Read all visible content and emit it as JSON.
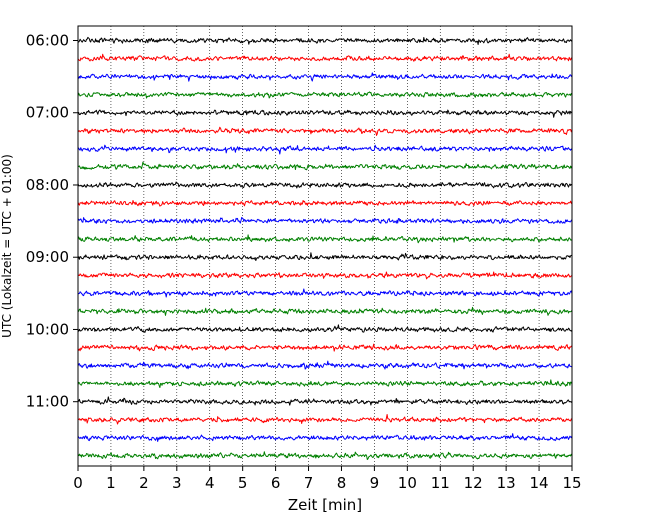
{
  "chart_data": {
    "type": "line",
    "title": "",
    "xlabel": "Zeit  [min]",
    "ylabel": "UTC (Lokalzeit = UTC + 01:00)",
    "xlim": [
      0,
      15
    ],
    "x_ticks": [
      0,
      1,
      2,
      3,
      4,
      5,
      6,
      7,
      8,
      9,
      10,
      11,
      12,
      13,
      14,
      15
    ],
    "x_tick_labels": [
      "0",
      "1",
      "2",
      "3",
      "4",
      "5",
      "6",
      "7",
      "8",
      "9",
      "10",
      "11",
      "12",
      "13",
      "14",
      "15"
    ],
    "y_tick_labels": [
      "06:00",
      "07:00",
      "08:00",
      "09:00",
      "10:00",
      "11:00"
    ],
    "y_tick_traces": [
      0,
      4,
      8,
      12,
      16,
      20
    ],
    "trace_interval_minutes": 15,
    "grid": "vertical dotted",
    "legend": "none",
    "trace_color_cycle": [
      "#000000",
      "#ff0000",
      "#0000ff",
      "#008000"
    ],
    "traces": [
      {
        "start": "06:00"
      },
      {
        "start": "06:15"
      },
      {
        "start": "06:30"
      },
      {
        "start": "06:45"
      },
      {
        "start": "07:00"
      },
      {
        "start": "07:15"
      },
      {
        "start": "07:30"
      },
      {
        "start": "07:45"
      },
      {
        "start": "08:00"
      },
      {
        "start": "08:15"
      },
      {
        "start": "08:30"
      },
      {
        "start": "08:45"
      },
      {
        "start": "09:00"
      },
      {
        "start": "09:15"
      },
      {
        "start": "09:30"
      },
      {
        "start": "09:45"
      },
      {
        "start": "10:00"
      },
      {
        "start": "10:15"
      },
      {
        "start": "10:30"
      },
      {
        "start": "10:45"
      },
      {
        "start": "11:00"
      },
      {
        "start": "11:15"
      },
      {
        "start": "11:30"
      },
      {
        "start": "11:45"
      }
    ]
  }
}
